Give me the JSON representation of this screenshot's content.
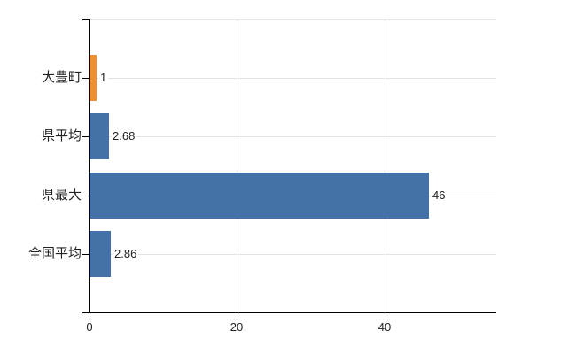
{
  "chart_data": {
    "type": "bar",
    "orientation": "horizontal",
    "title": "",
    "xlabel": "",
    "ylabel": "",
    "categories": [
      "大豊町",
      "県平均",
      "県最大",
      "全国平均"
    ],
    "values": [
      1,
      2.68,
      46,
      2.86
    ],
    "value_labels": [
      "1",
      "2.68",
      "46",
      "2.86"
    ],
    "series_colors": [
      "#ee8f31",
      "#4472a8",
      "#4472a8",
      "#4472a8"
    ],
    "xlim": [
      0,
      55.2
    ],
    "x_ticks": [
      0,
      20,
      40
    ],
    "x_tick_labels": [
      "0",
      "20",
      "40"
    ],
    "grid": true,
    "legend": false
  },
  "colors": {
    "bar_highlight": "#ee8f31",
    "bar_default": "#4472a8",
    "gridline": "#e2e2e2",
    "axis": "#000000",
    "text": "#222222",
    "background": "#ffffff"
  }
}
